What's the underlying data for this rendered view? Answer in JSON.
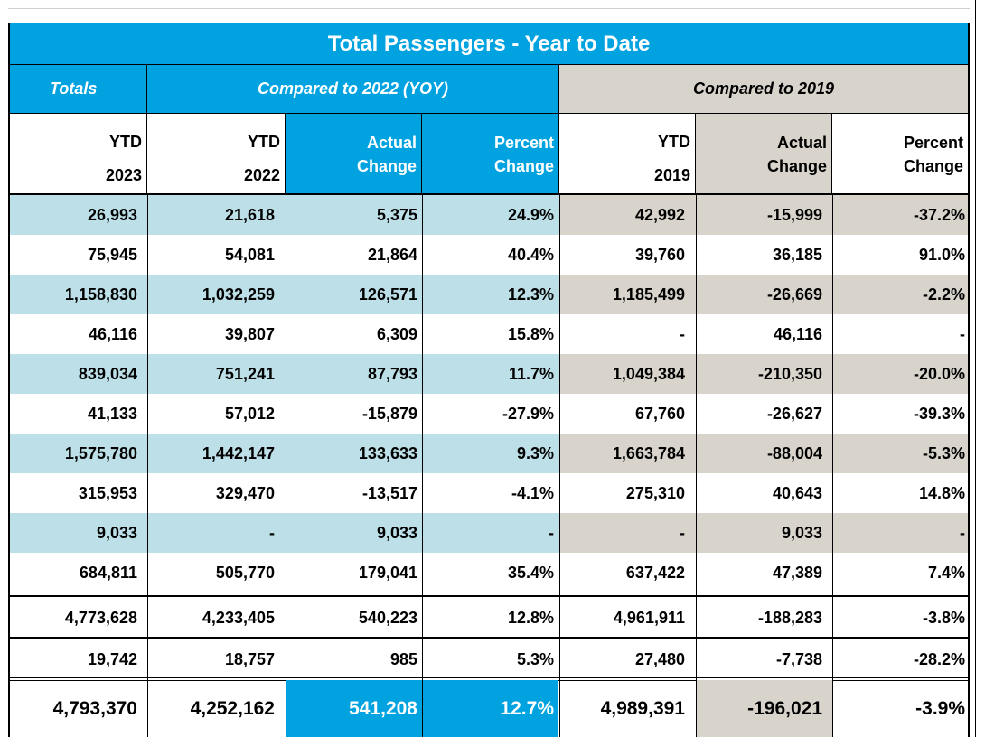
{
  "title": "Total Passengers - Year to Date",
  "groups": {
    "totals": "Totals",
    "cmp_2022": "Compared to 2022 (YOY)",
    "cmp_2019": "Compared to 2019"
  },
  "columns": [
    {
      "line1": "YTD",
      "line2": "2023"
    },
    {
      "line1": "YTD",
      "line2": "2022"
    },
    {
      "line1": "Actual",
      "line2": "Change"
    },
    {
      "line1": "Percent",
      "line2": "Change"
    },
    {
      "line1": "YTD",
      "line2": "2019"
    },
    {
      "line1": "Actual",
      "line2": "Change"
    },
    {
      "line1": "Percent",
      "line2": "Change"
    }
  ],
  "rows": [
    [
      "26,993",
      "21,618",
      "5,375",
      "24.9%",
      "42,992",
      "-15,999",
      "-37.2%"
    ],
    [
      "75,945",
      "54,081",
      "21,864",
      "40.4%",
      "39,760",
      "36,185",
      "91.0%"
    ],
    [
      "1,158,830",
      "1,032,259",
      "126,571",
      "12.3%",
      "1,185,499",
      "-26,669",
      "-2.2%"
    ],
    [
      "46,116",
      "39,807",
      "6,309",
      "15.8%",
      "-",
      "46,116",
      "-"
    ],
    [
      "839,034",
      "751,241",
      "87,793",
      "11.7%",
      "1,049,384",
      "-210,350",
      "-20.0%"
    ],
    [
      "41,133",
      "57,012",
      "-15,879",
      "-27.9%",
      "67,760",
      "-26,627",
      "-39.3%"
    ],
    [
      "1,575,780",
      "1,442,147",
      "133,633",
      "9.3%",
      "1,663,784",
      "-88,004",
      "-5.3%"
    ],
    [
      "315,953",
      "329,470",
      "-13,517",
      "-4.1%",
      "275,310",
      "40,643",
      "14.8%"
    ],
    [
      "9,033",
      "-",
      "9,033",
      "-",
      "-",
      "9,033",
      "-"
    ],
    [
      "684,811",
      "505,770",
      "179,041",
      "35.4%",
      "637,422",
      "47,389",
      "7.4%"
    ],
    [
      "4,773,628",
      "4,233,405",
      "540,223",
      "12.8%",
      "4,961,911",
      "-188,283",
      "-3.8%"
    ],
    [
      "19,742",
      "18,757",
      "985",
      "5.3%",
      "27,480",
      "-7,738",
      "-28.2%"
    ]
  ],
  "total": [
    "4,793,370",
    "4,252,162",
    "541,208",
    "12.7%",
    "4,989,391",
    "-196,021",
    "-3.9%"
  ],
  "colors": {
    "accent_blue": "#00a2e0",
    "row_blue": "#bde0e8",
    "row_gray": "#d8d4cc"
  }
}
